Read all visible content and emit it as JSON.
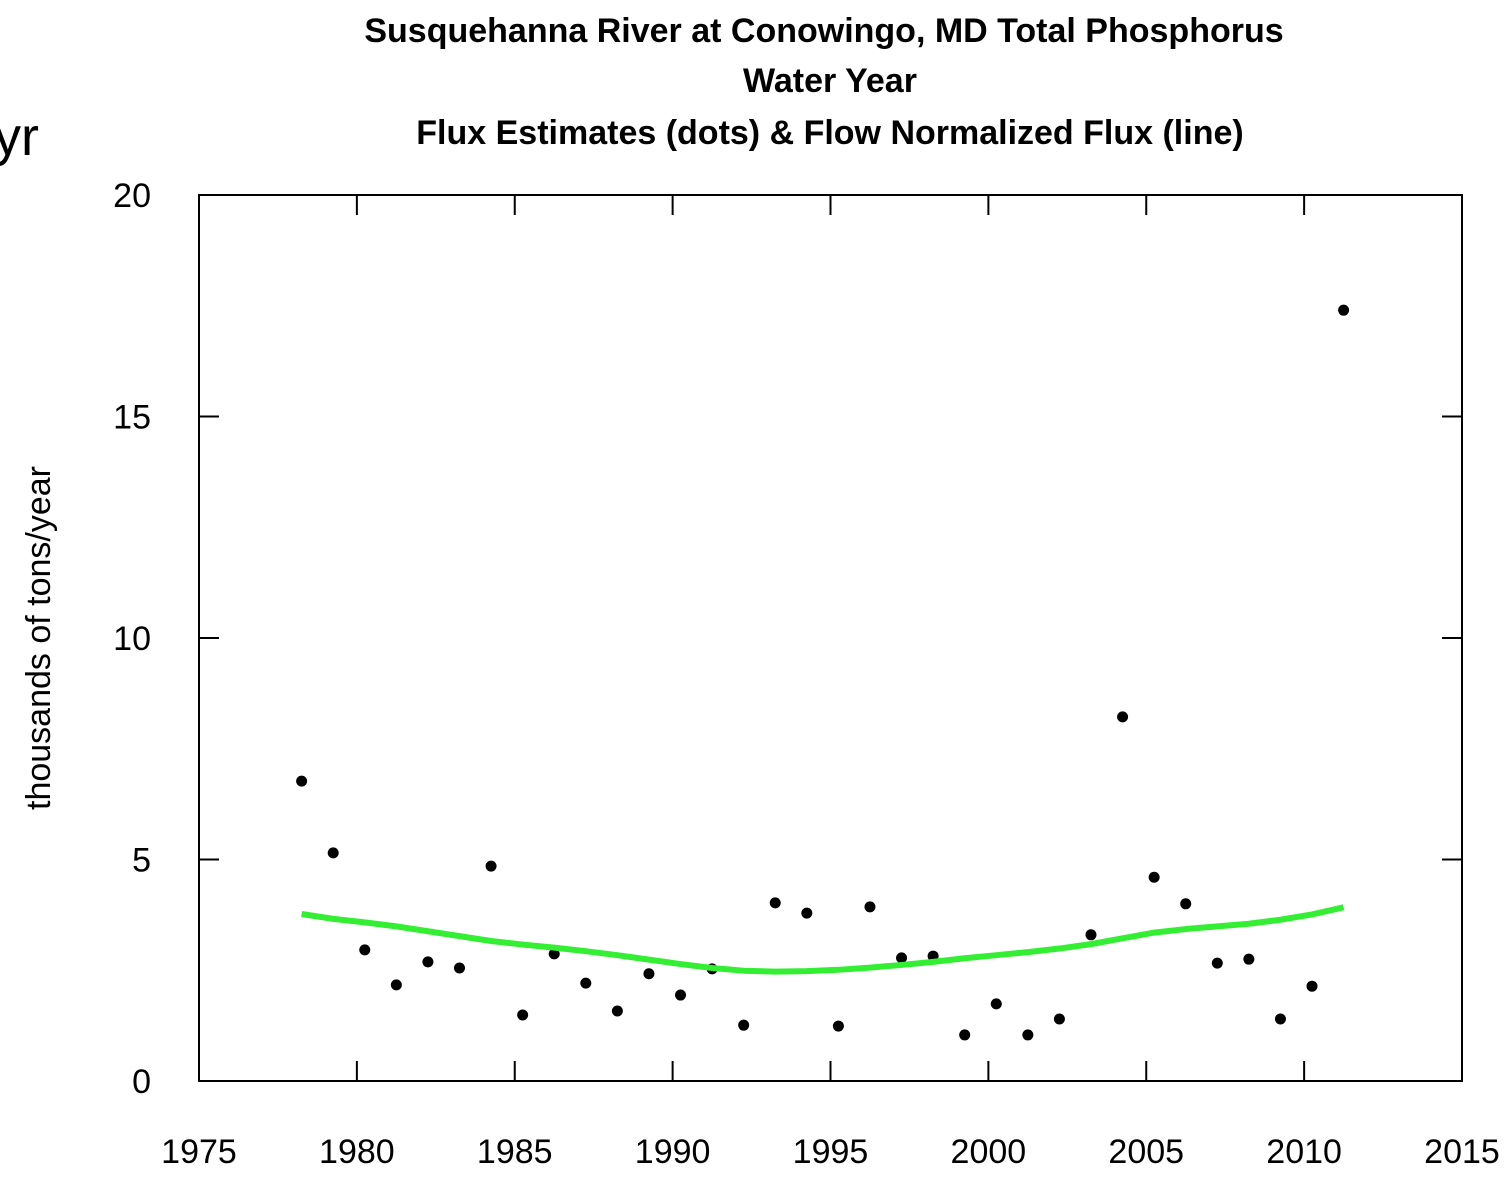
{
  "chart_data": {
    "type": "scatter",
    "title": [
      "Susquehanna River at Conowingo, MD   Total Phosphorus",
      "Water Year",
      "Flux Estimates (dots) & Flow Normalized Flux (line)"
    ],
    "ylabel": "thousands of tons/year",
    "annotation": "yr",
    "x": [
      1978.25,
      1979.25,
      1980.25,
      1981.25,
      1982.25,
      1983.25,
      1984.25,
      1985.25,
      1986.25,
      1987.25,
      1988.25,
      1989.25,
      1990.25,
      1991.25,
      1992.25,
      1993.25,
      1994.25,
      1995.25,
      1996.25,
      1997.25,
      1998.25,
      1999.25,
      2000.25,
      2001.25,
      2002.25,
      2003.25,
      2004.25,
      2005.25,
      2006.25,
      2007.25,
      2008.25,
      2009.25,
      2010.25,
      2011.25
    ],
    "series": [
      {
        "type": "scatter",
        "color": "#000000",
        "values": [
          6.77,
          5.15,
          2.96,
          2.17,
          2.69,
          2.55,
          4.85,
          1.49,
          2.87,
          2.21,
          1.58,
          2.42,
          1.94,
          2.53,
          1.26,
          4.02,
          3.79,
          1.24,
          3.93,
          2.78,
          2.82,
          1.04,
          1.74,
          1.04,
          1.4,
          3.3,
          8.22,
          4.6,
          4.0,
          2.66,
          2.75,
          1.4,
          2.14,
          17.4
        ]
      },
      {
        "type": "line",
        "color": "#33ee33",
        "values": [
          3.77,
          3.66,
          3.58,
          3.49,
          3.38,
          3.27,
          3.16,
          3.08,
          3.01,
          2.93,
          2.84,
          2.74,
          2.64,
          2.55,
          2.49,
          2.47,
          2.48,
          2.51,
          2.56,
          2.62,
          2.69,
          2.77,
          2.84,
          2.91,
          2.99,
          3.09,
          3.22,
          3.35,
          3.43,
          3.49,
          3.55,
          3.64,
          3.76,
          3.92
        ]
      }
    ],
    "xlim": [
      1975,
      2015
    ],
    "xticks": [
      1975,
      1980,
      1985,
      1990,
      1995,
      2000,
      2005,
      2010,
      2015
    ],
    "ylim": [
      0,
      20
    ],
    "yticks": [
      0,
      5,
      10,
      15,
      20
    ]
  }
}
